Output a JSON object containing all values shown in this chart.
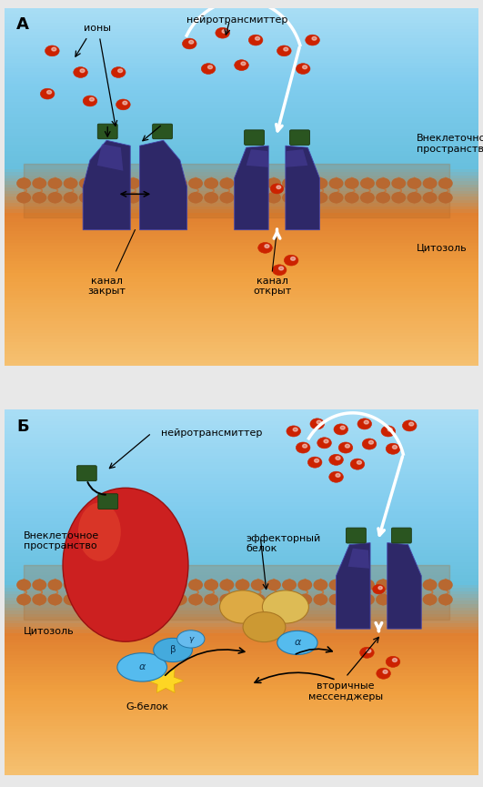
{
  "panel_A_label": "А",
  "panel_B_label": "Б",
  "label_ions_A": "ионы",
  "label_neurotransmitter_A": "нейротрансмиттер",
  "label_extracellular_A": "Внеклеточное\nпространство",
  "label_cytosol_A": "Цитозоль",
  "label_channel_closed": "канал\nзакрыт",
  "label_channel_open": "канал\nоткрыт",
  "label_neurotransmitter_B": "нейротрансмиттер",
  "label_extracellular_B": "Внеклеточное\nпространство",
  "label_cytosol_B": "Цитозоль",
  "label_effector": "эффекторный\nбелок",
  "label_gprotein": "G-белок",
  "label_secondary": "вторичные\nмессенджеры",
  "bg_sky_top": "#b8e4f5",
  "bg_sky_mid": "#5db8d8",
  "bg_orange_mid": "#e8923a",
  "bg_orange_bot": "#f0b060",
  "mem_head_color": "#b86830",
  "mem_tail_color": "#c07840",
  "receptor_color": "#2e2868",
  "receptor_edge": "#4444aa",
  "receptor_highlight": "#4a40a0",
  "square_color": "#2a5520",
  "square_edge": "#1a3510",
  "ion_color": "#cc2200",
  "ion_shine": "#ff6644",
  "red_protein": "#cc2020",
  "red_highlight": "#ee5533",
  "gprotein_blue": "#44aadd",
  "gprotein_edge": "#2277aa",
  "effector_orange": "#ddaa44",
  "effector_edge": "#aa7722"
}
